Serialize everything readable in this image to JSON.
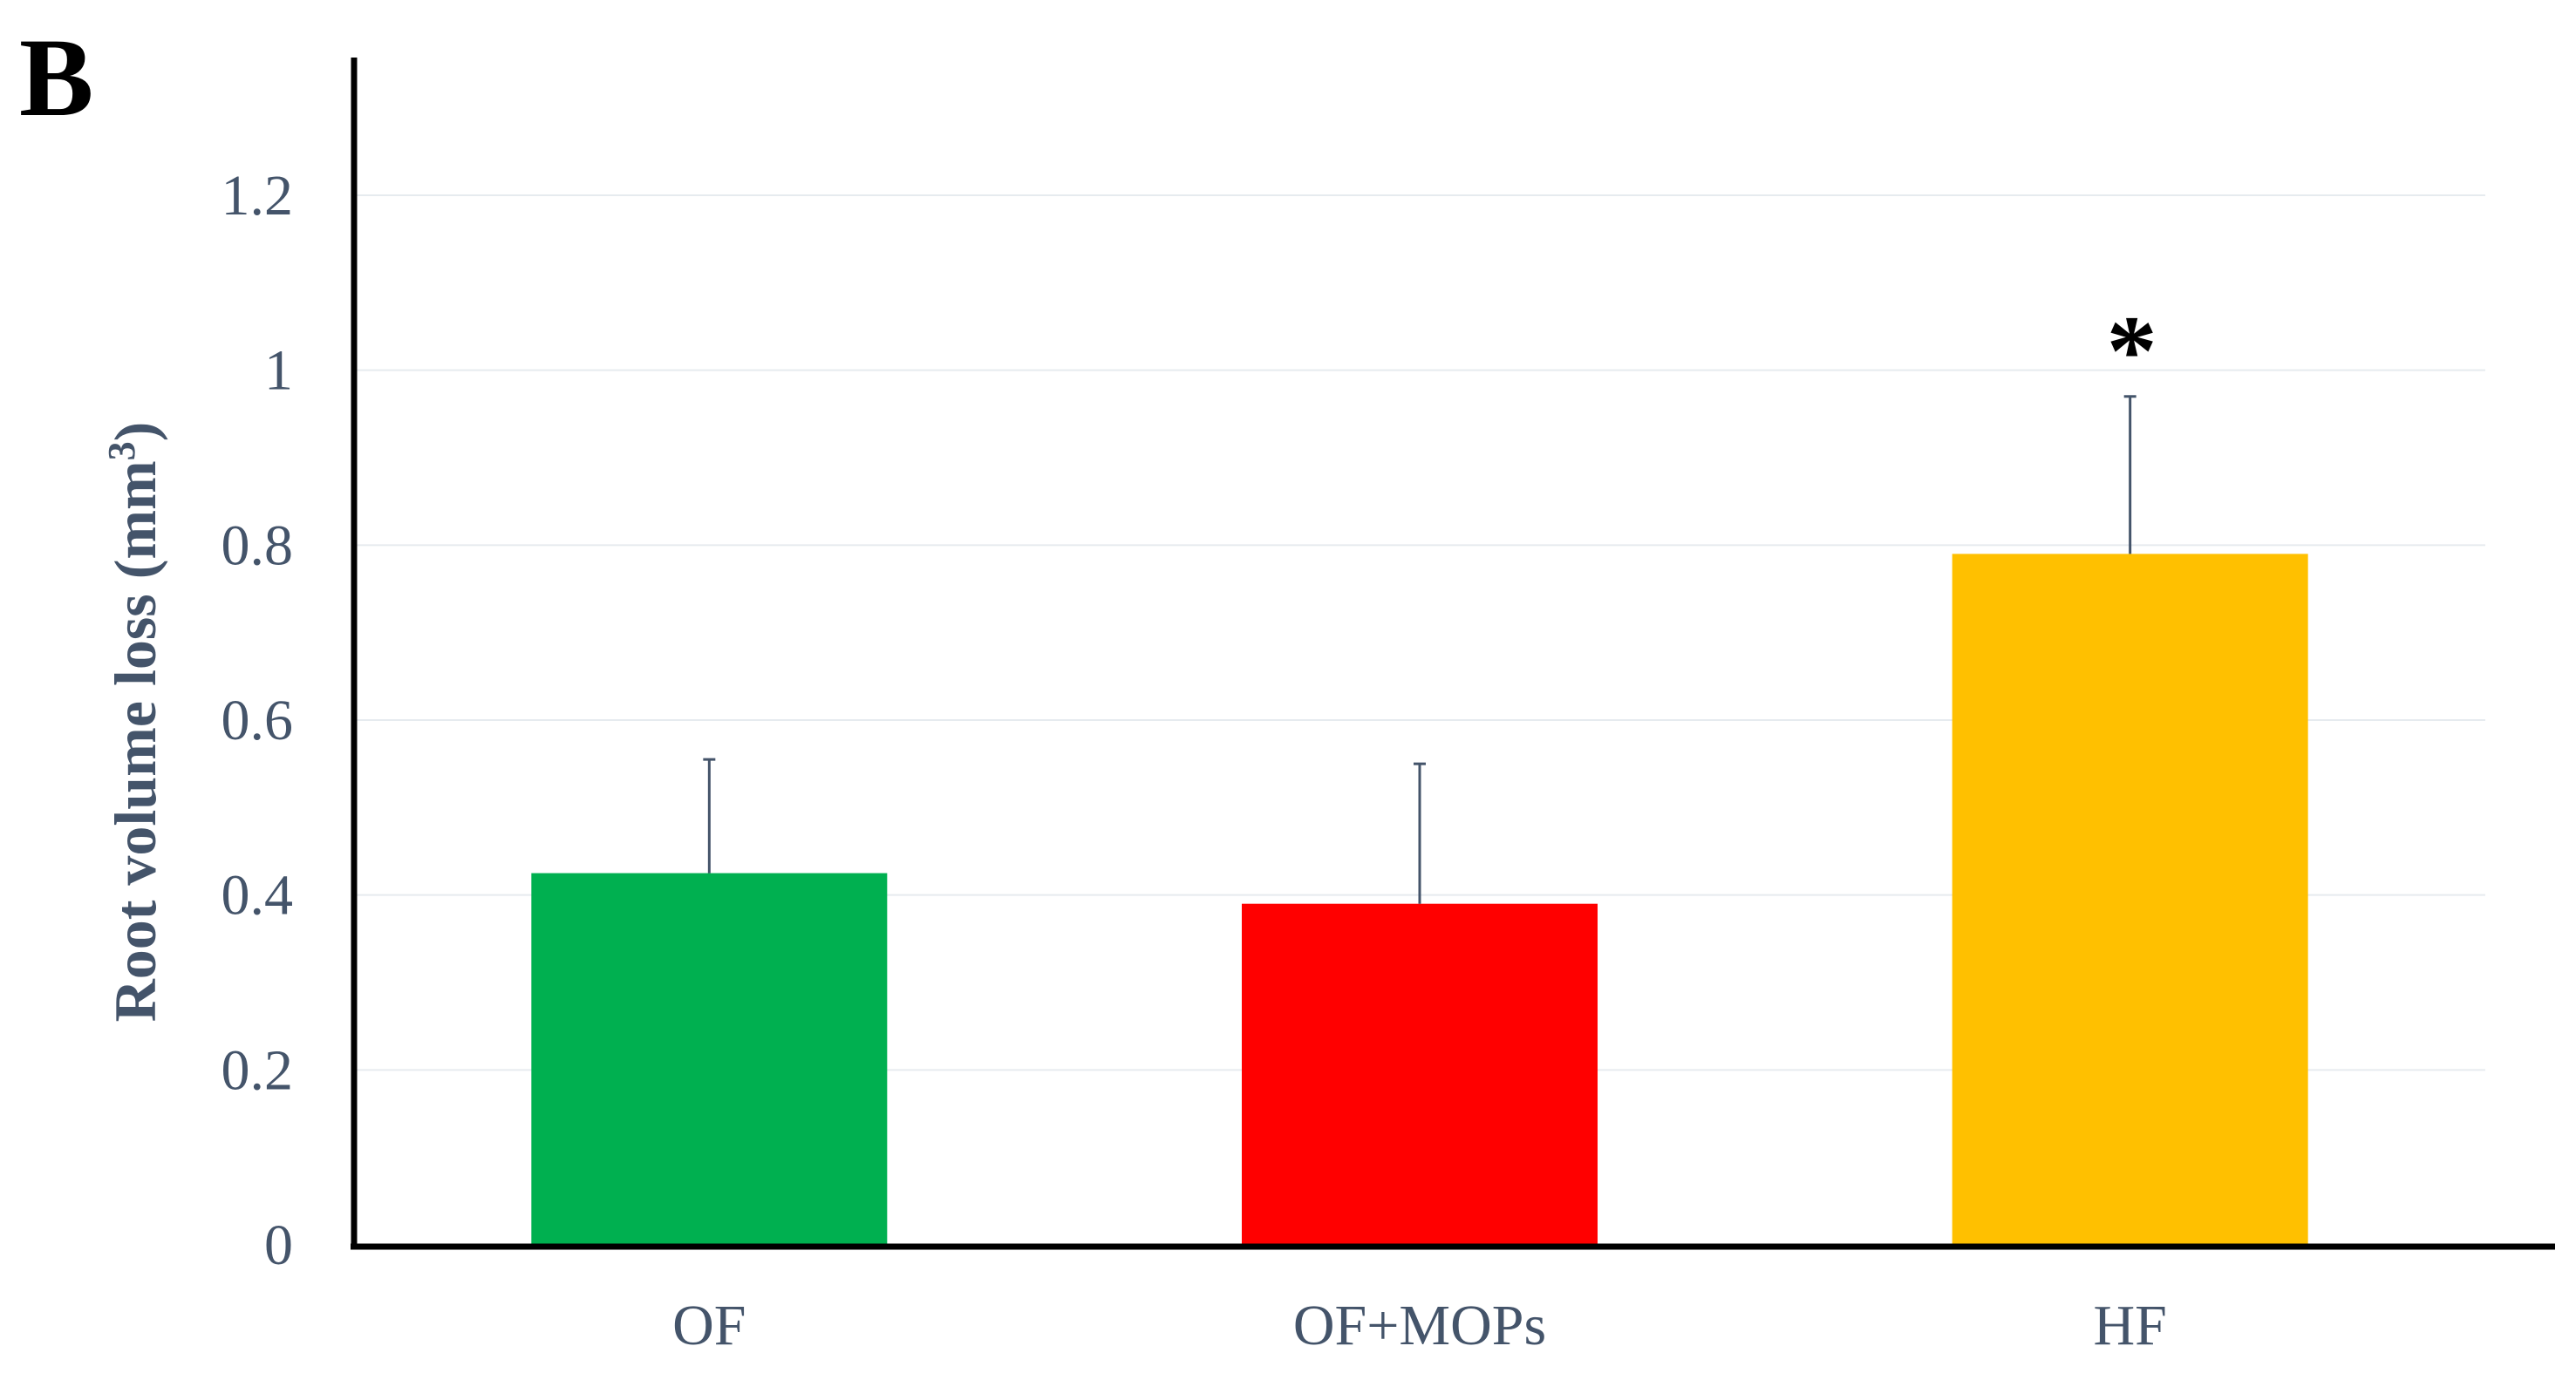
{
  "chart_data": {
    "type": "bar",
    "panel_label": "B",
    "categories": [
      "OF",
      "OF+MOPs",
      "HF"
    ],
    "values": [
      0.425,
      0.39,
      0.79
    ],
    "errors": [
      0.13,
      0.16,
      0.18
    ],
    "colors": [
      "#00b050",
      "#ff0000",
      "#ffc000"
    ],
    "ylabel": "Root volume loss (mm",
    "ylabel_superscript": "3",
    "ylabel_suffix": ")",
    "ylim": [
      0,
      1.2
    ],
    "yticks": [
      "0",
      "0.2",
      "0.4",
      "0.6",
      "0.8",
      "1",
      "1.2"
    ],
    "ytick_values": [
      0,
      0.2,
      0.4,
      0.6,
      0.8,
      1,
      1.2
    ],
    "grid": true,
    "annotations": [
      {
        "category": "HF",
        "text": "*"
      }
    ]
  }
}
